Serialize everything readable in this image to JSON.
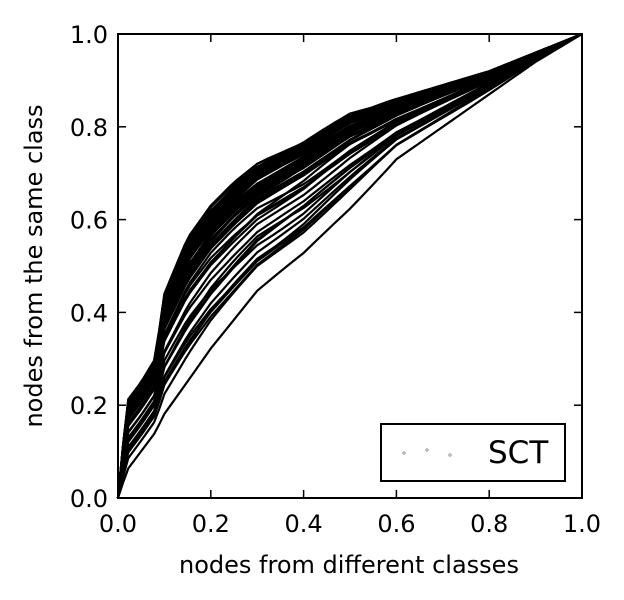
{
  "chart_data": {
    "type": "line",
    "title": "",
    "xlabel": "nodes from different classes",
    "ylabel": "nodes from the same class",
    "xlim": [
      0.0,
      1.0
    ],
    "ylim": [
      0.0,
      1.0
    ],
    "xticks": [
      "0.0",
      "0.2",
      "0.4",
      "0.6",
      "0.8",
      "1.0"
    ],
    "yticks": [
      "0.0",
      "0.2",
      "0.4",
      "0.6",
      "0.8",
      "1.0"
    ],
    "grid": false,
    "legend": {
      "position": "bottom-right",
      "entries": [
        {
          "label": "SCT"
        }
      ]
    },
    "line_color": "#000000",
    "band": {
      "x": [
        0.0,
        0.02,
        0.05,
        0.08,
        0.1,
        0.15,
        0.2,
        0.25,
        0.3,
        0.4,
        0.5,
        0.6,
        0.7,
        0.8,
        0.9,
        1.0
      ],
      "upper": [
        0.0,
        0.21,
        0.25,
        0.3,
        0.44,
        0.56,
        0.63,
        0.68,
        0.72,
        0.77,
        0.83,
        0.86,
        0.89,
        0.92,
        0.96,
        1.0
      ],
      "lower": [
        0.0,
        0.06,
        0.1,
        0.14,
        0.18,
        0.25,
        0.32,
        0.38,
        0.44,
        0.52,
        0.62,
        0.73,
        0.8,
        0.87,
        0.94,
        1.0
      ]
    },
    "series_count": 60
  }
}
